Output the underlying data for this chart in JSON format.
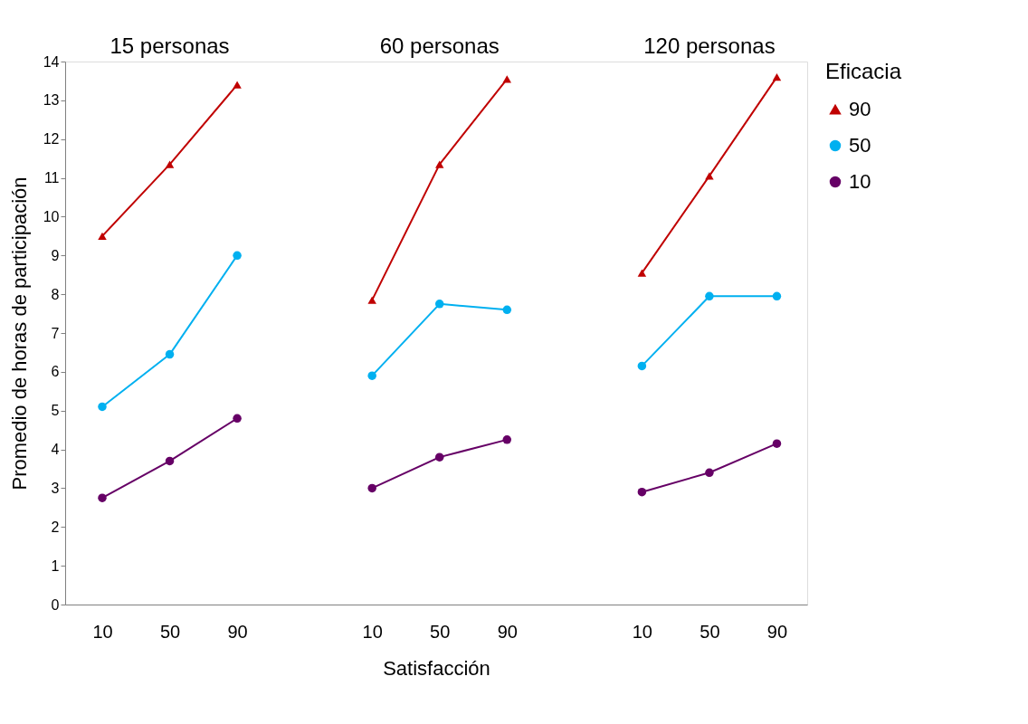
{
  "chart_data": {
    "type": "line",
    "xlabel": "Satisfacción",
    "ylabel": "Promedio de horas de participación",
    "legend_title": "Eficacia",
    "categories": [
      "10",
      "50",
      "90",
      null,
      "10",
      "50",
      "90",
      null,
      "10",
      "50",
      "90"
    ],
    "series": [
      {
        "name": "90",
        "color": "#c00000",
        "marker": "triangle",
        "values": [
          9.5,
          11.35,
          13.4,
          null,
          7.85,
          11.35,
          13.55,
          null,
          8.55,
          11.05,
          13.6
        ]
      },
      {
        "name": "50",
        "color": "#00b0f0",
        "marker": "circle",
        "values": [
          5.1,
          6.45,
          9.0,
          null,
          5.9,
          7.75,
          7.6,
          null,
          6.15,
          7.95,
          7.95
        ]
      },
      {
        "name": "10",
        "color": "#660066",
        "marker": "circle",
        "values": [
          2.75,
          3.7,
          4.8,
          null,
          3.0,
          3.8,
          4.25,
          null,
          2.9,
          3.4,
          4.15
        ]
      }
    ],
    "ylim": [
      0,
      14
    ],
    "yticks": [
      0,
      1,
      2,
      3,
      4,
      5,
      6,
      7,
      8,
      9,
      10,
      11,
      12,
      13,
      14
    ],
    "annotations": [
      "15 personas",
      "60 personas",
      "120 personas"
    ],
    "line_style": "solid",
    "grid": false,
    "legend": "right"
  }
}
